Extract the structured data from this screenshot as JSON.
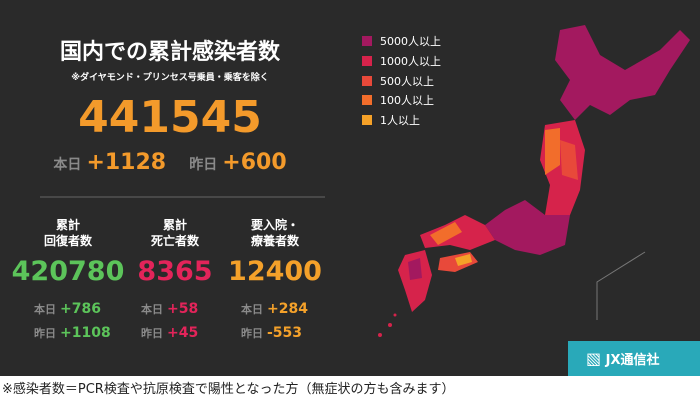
{
  "header": {
    "title": "国内での累計感染者数",
    "note": "※ダイヤモンド・プリンセス号乗員・乗客を除く"
  },
  "total": {
    "value": "441545",
    "today_label": "本日",
    "today": "+1128",
    "yesterday_label": "昨日",
    "yesterday": "+600"
  },
  "stats": [
    {
      "label": [
        "累計",
        "回復者数"
      ],
      "value": "420780",
      "today_label": "本日",
      "today": "+786",
      "yesterday_label": "昨日",
      "yesterday": "+1108",
      "color": "#5cc45a"
    },
    {
      "label": [
        "累計",
        "死亡者数"
      ],
      "value": "8365",
      "today_label": "本日",
      "today": "+58",
      "yesterday_label": "昨日",
      "yesterday": "+45",
      "color": "#e3245a"
    },
    {
      "label": [
        "要入院・",
        "療養者数"
      ],
      "value": "12400",
      "today_label": "本日",
      "today": "+284",
      "yesterday_label": "昨日",
      "yesterday": "-553",
      "color": "#f4a12a"
    }
  ],
  "legend": [
    {
      "label": "5000人以上",
      "color": "#a3195f"
    },
    {
      "label": "1000人以上",
      "color": "#d6234b"
    },
    {
      "label": "500人以上",
      "color": "#e8493a"
    },
    {
      "label": "100人以上",
      "color": "#f26d2b"
    },
    {
      "label": "1人以上",
      "color": "#f5a128"
    }
  ],
  "logo": "JX通信社",
  "footnote": "※感染者数＝PCR検査や抗原検査で陽性となった方（無症状の方も含みます）"
}
